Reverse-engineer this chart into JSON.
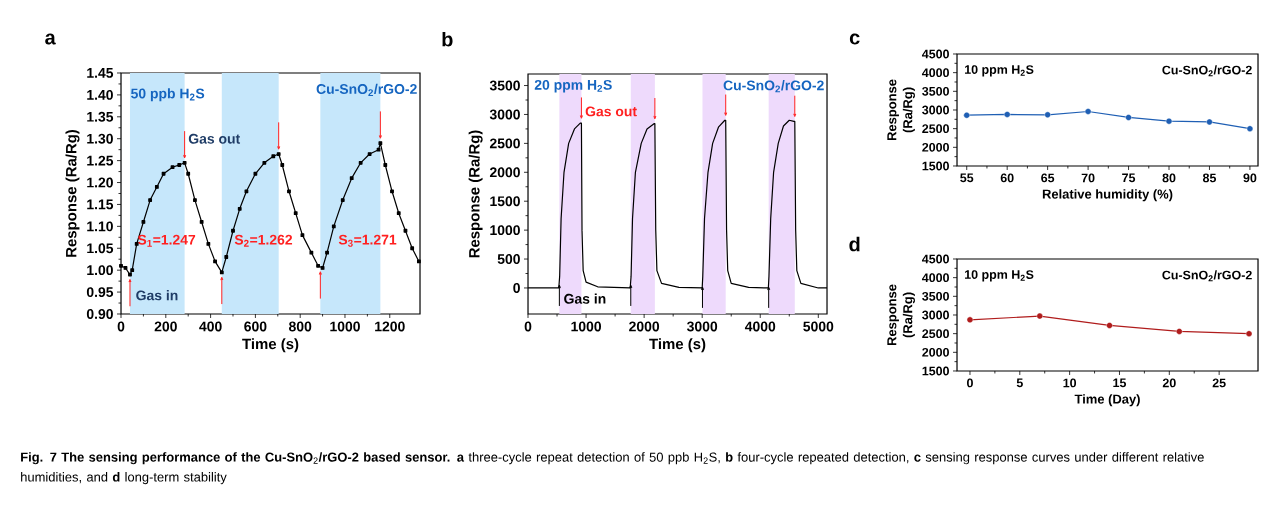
{
  "chart_data": [
    {
      "type": "line",
      "title": "a",
      "xlabel": "Time (s)",
      "ylabel": "Response (Ra/Rg)",
      "marker": "square",
      "color": "#000000",
      "x": [
        0,
        20,
        40,
        50,
        70,
        100,
        130,
        160,
        190,
        230,
        260,
        284,
        300,
        330,
        360,
        390,
        420,
        450,
        470,
        500,
        530,
        560,
        600,
        640,
        680,
        704,
        720,
        750,
        780,
        810,
        850,
        880,
        900,
        920,
        950,
        990,
        1030,
        1070,
        1110,
        1150,
        1158,
        1180,
        1210,
        1240,
        1270,
        1300,
        1330
      ],
      "values": [
        1.01,
        1.005,
        0.99,
        1.0,
        1.06,
        1.11,
        1.16,
        1.19,
        1.22,
        1.235,
        1.24,
        1.245,
        1.22,
        1.16,
        1.11,
        1.06,
        1.02,
        0.995,
        1.03,
        1.09,
        1.14,
        1.18,
        1.22,
        1.245,
        1.26,
        1.265,
        1.24,
        1.18,
        1.13,
        1.08,
        1.04,
        1.01,
        1.005,
        1.04,
        1.1,
        1.16,
        1.21,
        1.245,
        1.265,
        1.275,
        1.29,
        1.24,
        1.18,
        1.13,
        1.09,
        1.05,
        1.02
      ],
      "xlim": [
        0,
        1335
      ],
      "ylim": [
        0.9,
        1.45
      ],
      "xticks": [
        0,
        200,
        400,
        600,
        800,
        1000,
        1200
      ],
      "yticks": [
        {
          "value": 0.9,
          "label": "0.90"
        },
        0.95,
        {
          "value": 1.0,
          "label": "1.00"
        },
        1.05,
        {
          "value": 1.1,
          "label": "1.10"
        },
        1.15,
        {
          "value": 1.2,
          "label": "1.20"
        },
        1.25,
        {
          "value": 1.3,
          "label": "1.30"
        },
        1.35,
        {
          "value": 1.4,
          "label": "1.40"
        },
        1.45
      ],
      "bands": [
        {
          "axis": "x",
          "from": 40,
          "to": 284,
          "color": "#c6e7fb"
        },
        {
          "axis": "x",
          "from": 450,
          "to": 704,
          "color": "#c6e7fb"
        },
        {
          "axis": "x",
          "from": 890,
          "to": 1158,
          "color": "#c6e7fb"
        }
      ],
      "annotations": [
        "50 ppb H$_{2}$S",
        "Cu-SnO$_{2}$/rGO-2",
        "Gas out",
        "Gas in",
        "S$_{1}$=1.247",
        "S$_{2}$=1.262",
        "S$_{3}$=1.271",
        "**Fig. 7 The sensing performance of the Cu-SnO**$_{2}$**/rGO-2 based sensor.** **a** three-cycle repeat detection of 50 ppb H$_{2}$S, **b** four-cycle repeated detection, **c** sensing response curves under different relative humidities, and **d** long-term stability"
      ]
    },
    {
      "type": "line",
      "title": "b",
      "xlabel": "Time (s)",
      "ylabel": "Response (Ra/Rg)",
      "color": "#000000",
      "x": [
        0,
        530,
        545,
        570,
        620,
        700,
        800,
        900,
        920,
        930,
        950,
        1000,
        1200,
        1760,
        1775,
        1800,
        1850,
        1950,
        2050,
        2170,
        2185,
        2200,
        2220,
        2300,
        2600,
        3000,
        3010,
        3040,
        3100,
        3180,
        3280,
        3390,
        3405,
        3420,
        3440,
        3500,
        3800,
        4140,
        4150,
        4180,
        4230,
        4310,
        4400,
        4500,
        4580,
        4595,
        4610,
        4630,
        4700,
        5000,
        5150
      ],
      "values": [
        0,
        0,
        200,
        1200,
        2000,
        2500,
        2750,
        2850,
        2850,
        1000,
        300,
        100,
        20,
        0,
        200,
        1200,
        2000,
        2500,
        2750,
        2840,
        2840,
        1000,
        300,
        80,
        10,
        0,
        200,
        1200,
        2000,
        2500,
        2780,
        2900,
        2900,
        1000,
        300,
        80,
        10,
        0,
        200,
        1200,
        2000,
        2500,
        2800,
        2900,
        2880,
        2880,
        1000,
        300,
        80,
        0,
        0
      ],
      "xlim": [
        0,
        5150
      ],
      "ylim": [
        -450,
        3700
      ],
      "xticks": [
        0,
        1000,
        2000,
        3000,
        4000,
        5000
      ],
      "yticks": [
        0,
        500,
        1000,
        1500,
        2000,
        2500,
        3000,
        3500
      ],
      "bands": [
        {
          "axis": "x",
          "from": 540,
          "to": 920,
          "color": "#eedafc"
        },
        {
          "axis": "x",
          "from": 1770,
          "to": 2185,
          "color": "#eedafc"
        },
        {
          "axis": "x",
          "from": 3005,
          "to": 3405,
          "color": "#eedafc"
        },
        {
          "axis": "x",
          "from": 4145,
          "to": 4595,
          "color": "#eedafc"
        }
      ],
      "annotations": [
        "20 ppm H$_{2}$S",
        "Cu-SnO$_{2}$/rGO-2",
        "Gas out",
        "Gas in"
      ]
    },
    {
      "type": "line",
      "title": "c",
      "xlabel": "Relative humidity (%)",
      "ylabel": "Response (Ra/Rg)",
      "marker": "circle",
      "color": "#1f5fb4",
      "x": [
        55,
        60,
        65,
        70,
        75,
        80,
        85,
        90
      ],
      "values": [
        2860,
        2880,
        2870,
        2960,
        2800,
        2700,
        2680,
        2500
      ],
      "xlim": [
        53.8,
        91
      ],
      "ylim": [
        1500,
        4500
      ],
      "xticks": [
        55,
        60,
        65,
        70,
        75,
        80,
        85,
        90
      ],
      "yticks": [
        1500,
        2000,
        2500,
        3000,
        3500,
        4000,
        4500
      ],
      "annotations": [
        "10 ppm H$_{2}$S",
        "Cu-SnO$_{2}$/rGO-2"
      ]
    },
    {
      "type": "line",
      "title": "d",
      "xlabel": "Time (Day)",
      "ylabel": "Response (Ra/Rg)",
      "marker": "circle",
      "color": "#b01c1c",
      "x": [
        0,
        7,
        14,
        21,
        28
      ],
      "values": [
        2870,
        2970,
        2720,
        2560,
        2500
      ],
      "xlim": [
        -1.3,
        28.9
      ],
      "ylim": [
        1500,
        4500
      ],
      "xticks": [
        0,
        5,
        10,
        15,
        20,
        25
      ],
      "yticks": [
        1500,
        2000,
        2500,
        3000,
        3500,
        4000,
        4500
      ],
      "annotations": [
        "10 ppm H$_{2}$S",
        "Cu-SnO$_{2}$/rGO-2"
      ]
    }
  ]
}
